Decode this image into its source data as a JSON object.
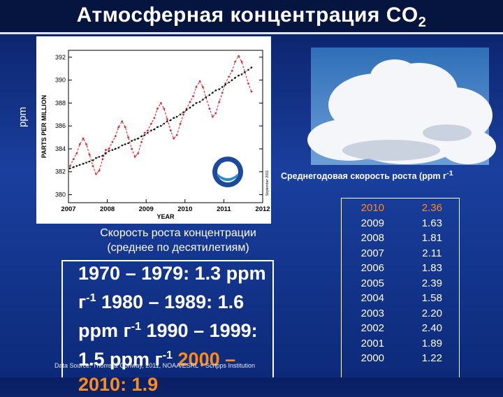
{
  "title": "Атмосферная концентрация CO",
  "title_subscript": "2",
  "side_label": "ppm",
  "highlight_color": "#ff8c1a",
  "chart_data": {
    "type": "line",
    "x_label": "YEAR",
    "y_label": "PARTS PER MILLION",
    "logo": "NOAA",
    "annotation": "September 2011",
    "xlim": [
      2007,
      2012
    ],
    "xticks": [
      2007,
      2008,
      2009,
      2010,
      2011,
      2012
    ],
    "ylim": [
      379.3,
      392.6
    ],
    "yticks": [
      380,
      382,
      384,
      386,
      388,
      390,
      392
    ],
    "x": [
      2007.04,
      2007.13,
      2007.21,
      2007.29,
      2007.38,
      2007.46,
      2007.54,
      2007.63,
      2007.71,
      2007.79,
      2007.88,
      2007.96,
      2008.04,
      2008.13,
      2008.21,
      2008.29,
      2008.38,
      2008.46,
      2008.54,
      2008.63,
      2008.71,
      2008.79,
      2008.88,
      2008.96,
      2009.04,
      2009.13,
      2009.21,
      2009.29,
      2009.38,
      2009.46,
      2009.54,
      2009.63,
      2009.71,
      2009.79,
      2009.88,
      2009.96,
      2010.04,
      2010.13,
      2010.21,
      2010.29,
      2010.38,
      2010.46,
      2010.54,
      2010.63,
      2010.71,
      2010.79,
      2010.88,
      2010.96,
      2011.04,
      2011.13,
      2011.21,
      2011.29,
      2011.38,
      2011.46,
      2011.54,
      2011.63,
      2011.71
    ],
    "series": [
      {
        "color": "#e8141e",
        "dashed": true,
        "values": [
          382.5,
          383.1,
          383.6,
          384.4,
          384.9,
          384.4,
          383.5,
          382.5,
          381.8,
          382.1,
          383.1,
          383.9,
          384.0,
          384.6,
          385.1,
          385.9,
          386.4,
          385.9,
          385.0,
          384.0,
          383.3,
          383.6,
          384.6,
          385.4,
          385.6,
          386.2,
          386.7,
          387.5,
          388.0,
          387.5,
          386.6,
          385.6,
          384.9,
          385.2,
          386.2,
          387.0,
          387.5,
          388.1,
          388.6,
          389.4,
          389.9,
          389.4,
          388.5,
          387.5,
          386.8,
          387.1,
          388.1,
          388.9,
          389.7,
          390.3,
          390.8,
          391.6,
          392.1,
          391.6,
          390.7,
          389.7,
          389.0
        ]
      },
      {
        "color": "#111111",
        "dashed": false,
        "values": [
          382.3,
          382.4,
          382.5,
          382.6,
          382.7,
          382.8,
          382.9,
          383.0,
          383.2,
          383.3,
          383.4,
          383.6,
          383.8,
          383.9,
          384.0,
          384.1,
          384.3,
          384.4,
          384.5,
          384.7,
          384.8,
          384.9,
          385.1,
          385.2,
          385.4,
          385.6,
          385.7,
          385.9,
          386.0,
          386.2,
          386.4,
          386.5,
          386.7,
          386.8,
          387.0,
          387.2,
          387.4,
          387.6,
          387.8,
          388.0,
          388.1,
          388.3,
          388.5,
          388.7,
          388.9,
          389.1,
          389.2,
          389.4,
          389.6,
          389.8,
          390.0,
          390.2,
          390.4,
          390.5,
          390.7,
          390.9,
          391.1
        ]
      }
    ]
  },
  "decade_caption": [
    "Скорость роста концентрации",
    "(среднее по десятилетиям)"
  ],
  "decades": [
    {
      "text": "1970 – 1979: 1.3 ppm г",
      "sup": "-1"
    },
    {
      "text": "1980 – 1989: 1.6 ppm г",
      "sup": "-1"
    },
    {
      "text": "1990 – 1999: 1.5 ppm г",
      "sup": "-1"
    },
    {
      "text": "2000 – 2010: 1.9",
      "sup": null
    }
  ],
  "source": "Data Source: Thoms & Conway, 2011, NOAA/ESRL + Scripps Institution",
  "table_caption": "Среднегодовая скорость роста (ppm г",
  "table_caption_sup": "-1",
  "table": {
    "highlight_row": 0,
    "rows": [
      [
        "2010",
        "2.36"
      ],
      [
        "2009",
        "1.63"
      ],
      [
        "2008",
        "1.81"
      ],
      [
        "2007",
        "2.11"
      ],
      [
        "2006",
        "1.83"
      ],
      [
        "2005",
        "2.39"
      ],
      [
        "2004",
        "1.58"
      ],
      [
        "2003",
        "2.20"
      ],
      [
        "2002",
        "2.40"
      ],
      [
        "2001",
        "1.89"
      ],
      [
        "2000",
        "1.22"
      ]
    ]
  }
}
